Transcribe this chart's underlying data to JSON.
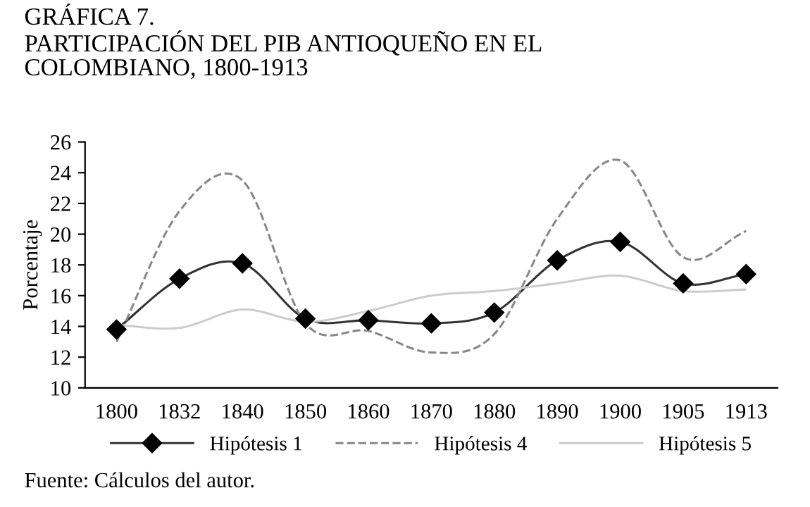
{
  "chart_data": {
    "type": "line",
    "title": "GRÁFICA 7.\nPARTICIPACIÓN DEL PIB ANTIOQUEÑO EN EL\nCOLOMBIANO, 1800-1913",
    "ylabel": "Porcentaje",
    "categories": [
      "1800",
      "1832",
      "1840",
      "1850",
      "1860",
      "1870",
      "1880",
      "1890",
      "1900",
      "1905",
      "1913"
    ],
    "series": [
      {
        "name": "Hipótesis 1",
        "color": "#333333",
        "marker": "diamond",
        "line_style": "solid",
        "values": [
          13.8,
          17.1,
          18.1,
          14.5,
          14.4,
          14.2,
          14.9,
          18.3,
          19.5,
          16.8,
          17.4
        ]
      },
      {
        "name": "Hipótesis 4",
        "color": "#888888",
        "marker": "none",
        "line_style": "dashed",
        "values": [
          13.0,
          21.5,
          23.5,
          14.2,
          13.7,
          12.3,
          13.5,
          21.0,
          24.8,
          18.5,
          20.2
        ]
      },
      {
        "name": "Hipótesis 5",
        "color": "#cccccc",
        "marker": "none",
        "line_style": "solid",
        "values": [
          14.1,
          13.9,
          15.1,
          14.3,
          15.0,
          16.0,
          16.3,
          16.8,
          17.3,
          16.3,
          16.4
        ]
      }
    ],
    "ylim": [
      10,
      26
    ],
    "yticks": [
      10,
      12,
      14,
      16,
      18,
      20,
      22,
      24,
      26
    ],
    "grid": false,
    "legend": "bottom",
    "annotations": [
      "Fuente: Cálculos del autor."
    ]
  }
}
